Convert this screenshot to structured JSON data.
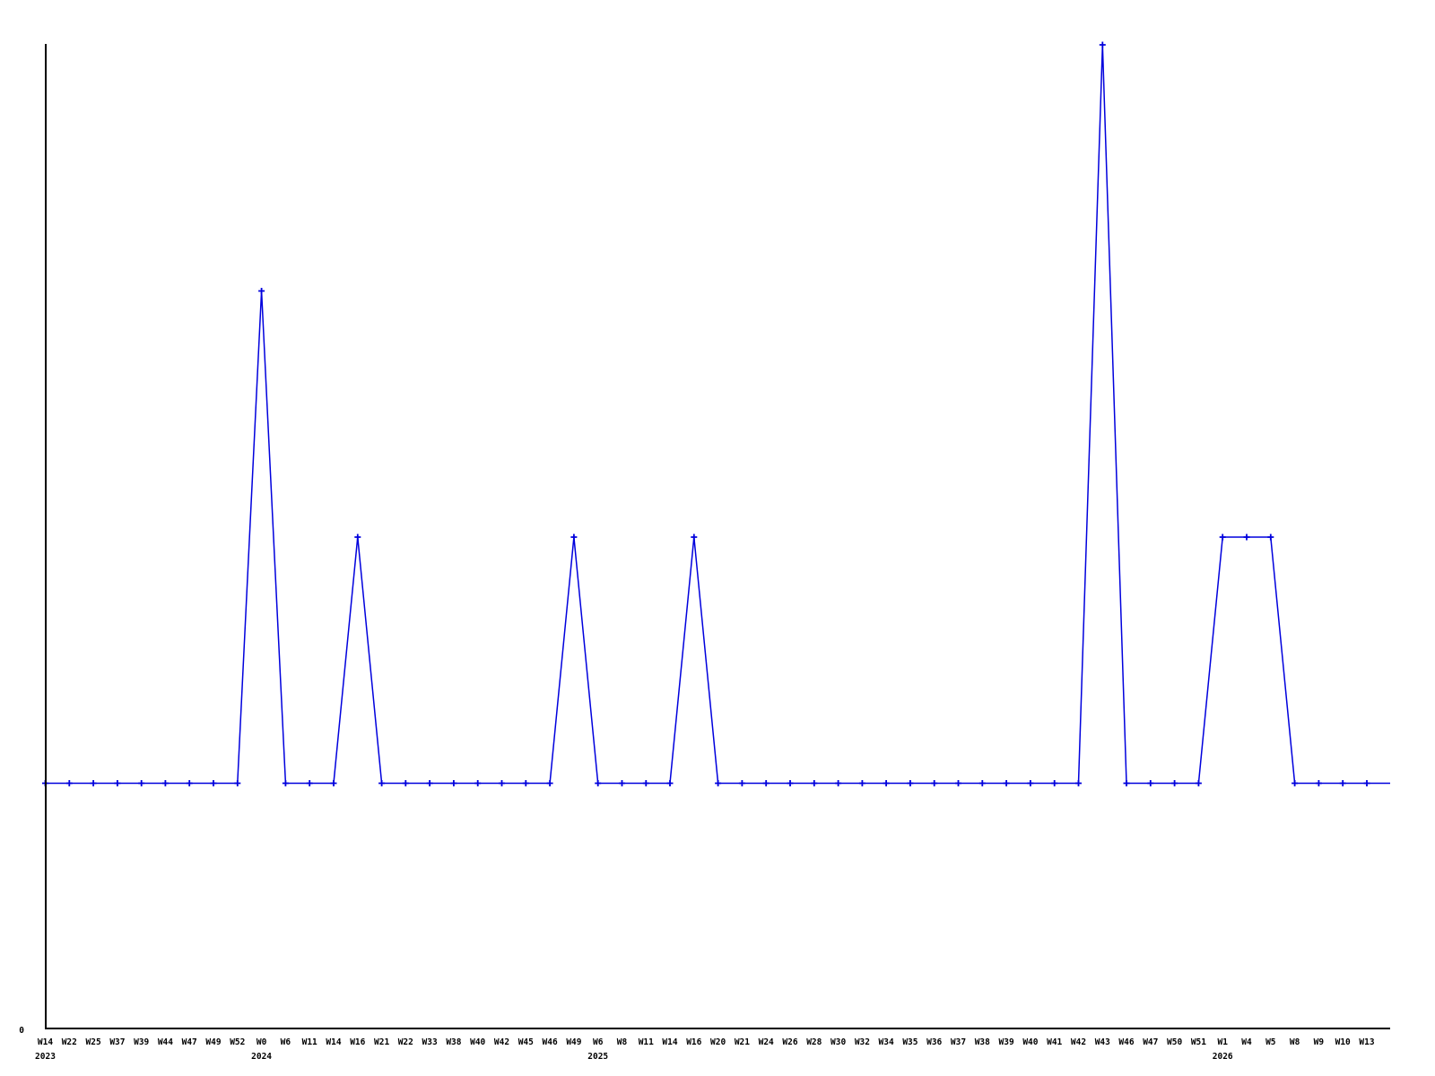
{
  "chart_data": {
    "type": "line",
    "title": "",
    "legend": "none",
    "grid": "off",
    "series_color": "#0000dd",
    "axis_color": "#000000",
    "marker_style": "plus",
    "x_labels": [
      "W14",
      "W22",
      "W25",
      "W37",
      "W39",
      "W44",
      "W47",
      "W49",
      "W52",
      "W0",
      "W6",
      "W11",
      "W14",
      "W16",
      "W21",
      "W22",
      "W33",
      "W38",
      "W40",
      "W42",
      "W45",
      "W46",
      "W49",
      "W6",
      "W8",
      "W11",
      "W14",
      "W16",
      "W20",
      "W21",
      "W24",
      "W26",
      "W28",
      "W30",
      "W32",
      "W34",
      "W35",
      "W36",
      "W37",
      "W38",
      "W39",
      "W40",
      "W41",
      "W42",
      "W43",
      "W46",
      "W47",
      "W50",
      "W51",
      "W1",
      "W4",
      "W5",
      "W8",
      "W9",
      "W10",
      "W13"
    ],
    "values": [
      1,
      1,
      1,
      1,
      1,
      1,
      1,
      1,
      1,
      3,
      1,
      1,
      1,
      2,
      1,
      1,
      1,
      1,
      1,
      1,
      1,
      1,
      2,
      1,
      1,
      1,
      1,
      2,
      1,
      1,
      1,
      1,
      1,
      1,
      1,
      1,
      1,
      1,
      1,
      1,
      1,
      1,
      1,
      1,
      4,
      1,
      1,
      1,
      1,
      2,
      2,
      2,
      1,
      1,
      1,
      1
    ],
    "year_labels": [
      {
        "label": "2023",
        "index": 0
      },
      {
        "label": "2024",
        "index": 9
      },
      {
        "label": "2025",
        "index": 23
      },
      {
        "label": "2026",
        "index": 49
      }
    ],
    "y_axis": {
      "zero_label": "0",
      "min": 0,
      "max": 4,
      "ticks_shown": [
        "0"
      ]
    },
    "notable_points": [
      {
        "label": "W0 2024",
        "value": 3
      },
      {
        "label": "W16 2024",
        "value": 2
      },
      {
        "label": "W49 2024",
        "value": 2
      },
      {
        "label": "W16 2025",
        "value": 2
      },
      {
        "label": "W43 2025",
        "value": 4
      },
      {
        "label": "W1 2026",
        "value": 2
      },
      {
        "label": "W4 2026",
        "value": 2
      },
      {
        "label": "W5 2026",
        "value": 2
      }
    ]
  }
}
